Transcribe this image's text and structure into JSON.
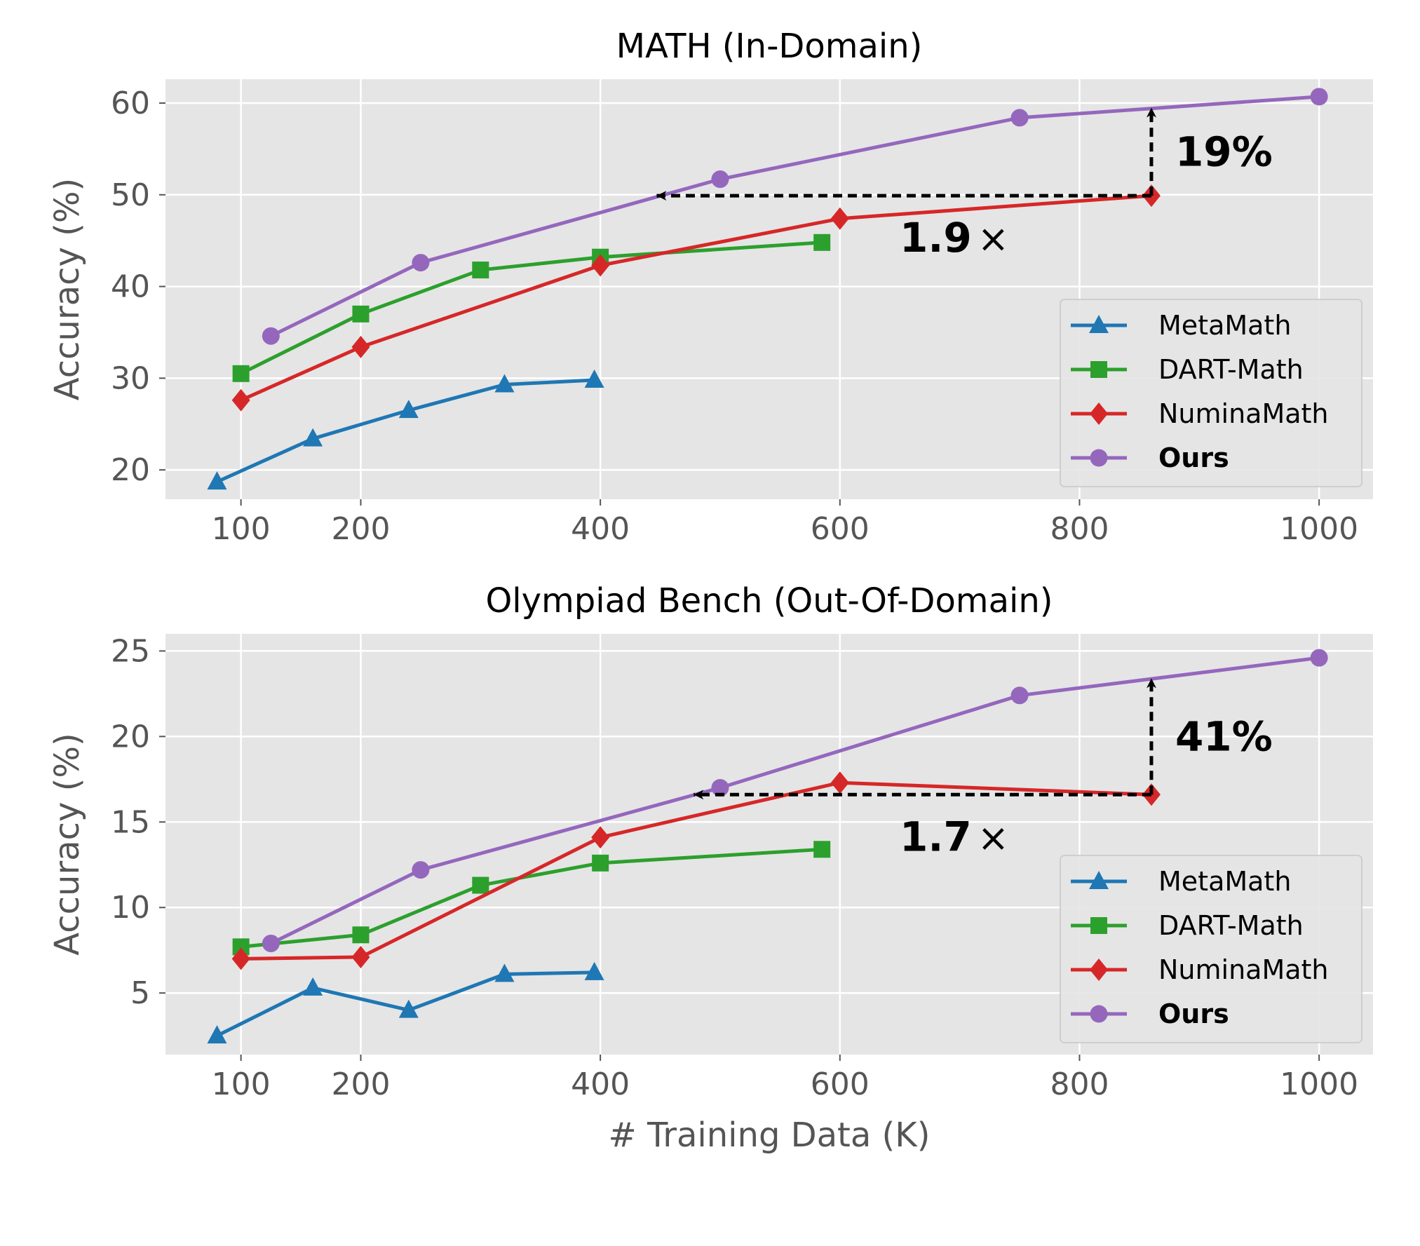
{
  "colors": {
    "MetaMath": "#1f77b4",
    "DART-Math": "#2ca02c",
    "NuminaMath": "#d62728",
    "Ours": "#9467bd",
    "panel_bg": "#e5e5e5",
    "grid": "#ffffff",
    "annotation": "#000000"
  },
  "chart_data": [
    {
      "type": "line",
      "title": "MATH (In-Domain)",
      "xlabel": "",
      "ylabel": "Accuracy (%)",
      "xlim": [
        37,
        1045
      ],
      "ylim": [
        16.8,
        62.6
      ],
      "xticks": [
        "100",
        "200",
        "400",
        "600",
        "800",
        "1000"
      ],
      "yticks": [
        "20",
        "30",
        "40",
        "50",
        "60"
      ],
      "grid": true,
      "legend_position": "lower-right",
      "series": [
        {
          "name": "MetaMath",
          "marker": "triangle",
          "x": [
            80,
            160,
            240,
            320,
            395
          ],
          "y": [
            18.7,
            23.4,
            26.5,
            29.3,
            29.8
          ]
        },
        {
          "name": "DART-Math",
          "marker": "square",
          "x": [
            100,
            200,
            300,
            400,
            585
          ],
          "y": [
            30.5,
            37.0,
            41.8,
            43.2,
            44.8
          ]
        },
        {
          "name": "NuminaMath",
          "marker": "diamond",
          "x": [
            100,
            200,
            400,
            600,
            860
          ],
          "y": [
            27.6,
            33.4,
            42.3,
            47.4,
            49.9
          ]
        },
        {
          "name": "Ours",
          "marker": "circle",
          "bold": true,
          "x": [
            125,
            250,
            500,
            750,
            1000
          ],
          "y": [
            34.6,
            42.6,
            51.7,
            58.4,
            60.7
          ]
        }
      ],
      "annotations": [
        {
          "label": "19%",
          "kind": "vertical-arrow",
          "x": 860,
          "y_from": 49.9,
          "y_to": 59.5
        },
        {
          "label": "1.9",
          "suffix": "×",
          "kind": "horizontal-arrow",
          "y": 49.9,
          "x_from": 860,
          "x_to": 447
        }
      ]
    },
    {
      "type": "line",
      "title": "Olympiad Bench (Out-Of-Domain)",
      "xlabel": "# Training Data (K)",
      "ylabel": "Accuracy (%)",
      "xlim": [
        37,
        1045
      ],
      "ylim": [
        1.4,
        26.0
      ],
      "xticks": [
        "100",
        "200",
        "400",
        "600",
        "800",
        "1000"
      ],
      "yticks": [
        "5",
        "10",
        "15",
        "20",
        "25"
      ],
      "grid": true,
      "legend_position": "lower-right",
      "series": [
        {
          "name": "MetaMath",
          "marker": "triangle",
          "x": [
            80,
            160,
            240,
            320,
            395
          ],
          "y": [
            2.5,
            5.3,
            4.0,
            6.1,
            6.2
          ]
        },
        {
          "name": "DART-Math",
          "marker": "square",
          "x": [
            100,
            200,
            300,
            400,
            585
          ],
          "y": [
            7.7,
            8.4,
            11.3,
            12.6,
            13.4
          ]
        },
        {
          "name": "NuminaMath",
          "marker": "diamond",
          "x": [
            100,
            200,
            400,
            600,
            860
          ],
          "y": [
            7.0,
            7.1,
            14.1,
            17.3,
            16.6
          ]
        },
        {
          "name": "Ours",
          "marker": "circle",
          "bold": true,
          "x": [
            125,
            250,
            500,
            750,
            1000
          ],
          "y": [
            7.9,
            12.2,
            17.0,
            22.4,
            24.6
          ]
        }
      ],
      "annotations": [
        {
          "label": "41%",
          "kind": "vertical-arrow",
          "x": 860,
          "y_from": 16.6,
          "y_to": 23.4
        },
        {
          "label": "1.7",
          "suffix": "×",
          "kind": "horizontal-arrow",
          "y": 16.6,
          "x_from": 860,
          "x_to": 478
        }
      ]
    }
  ]
}
